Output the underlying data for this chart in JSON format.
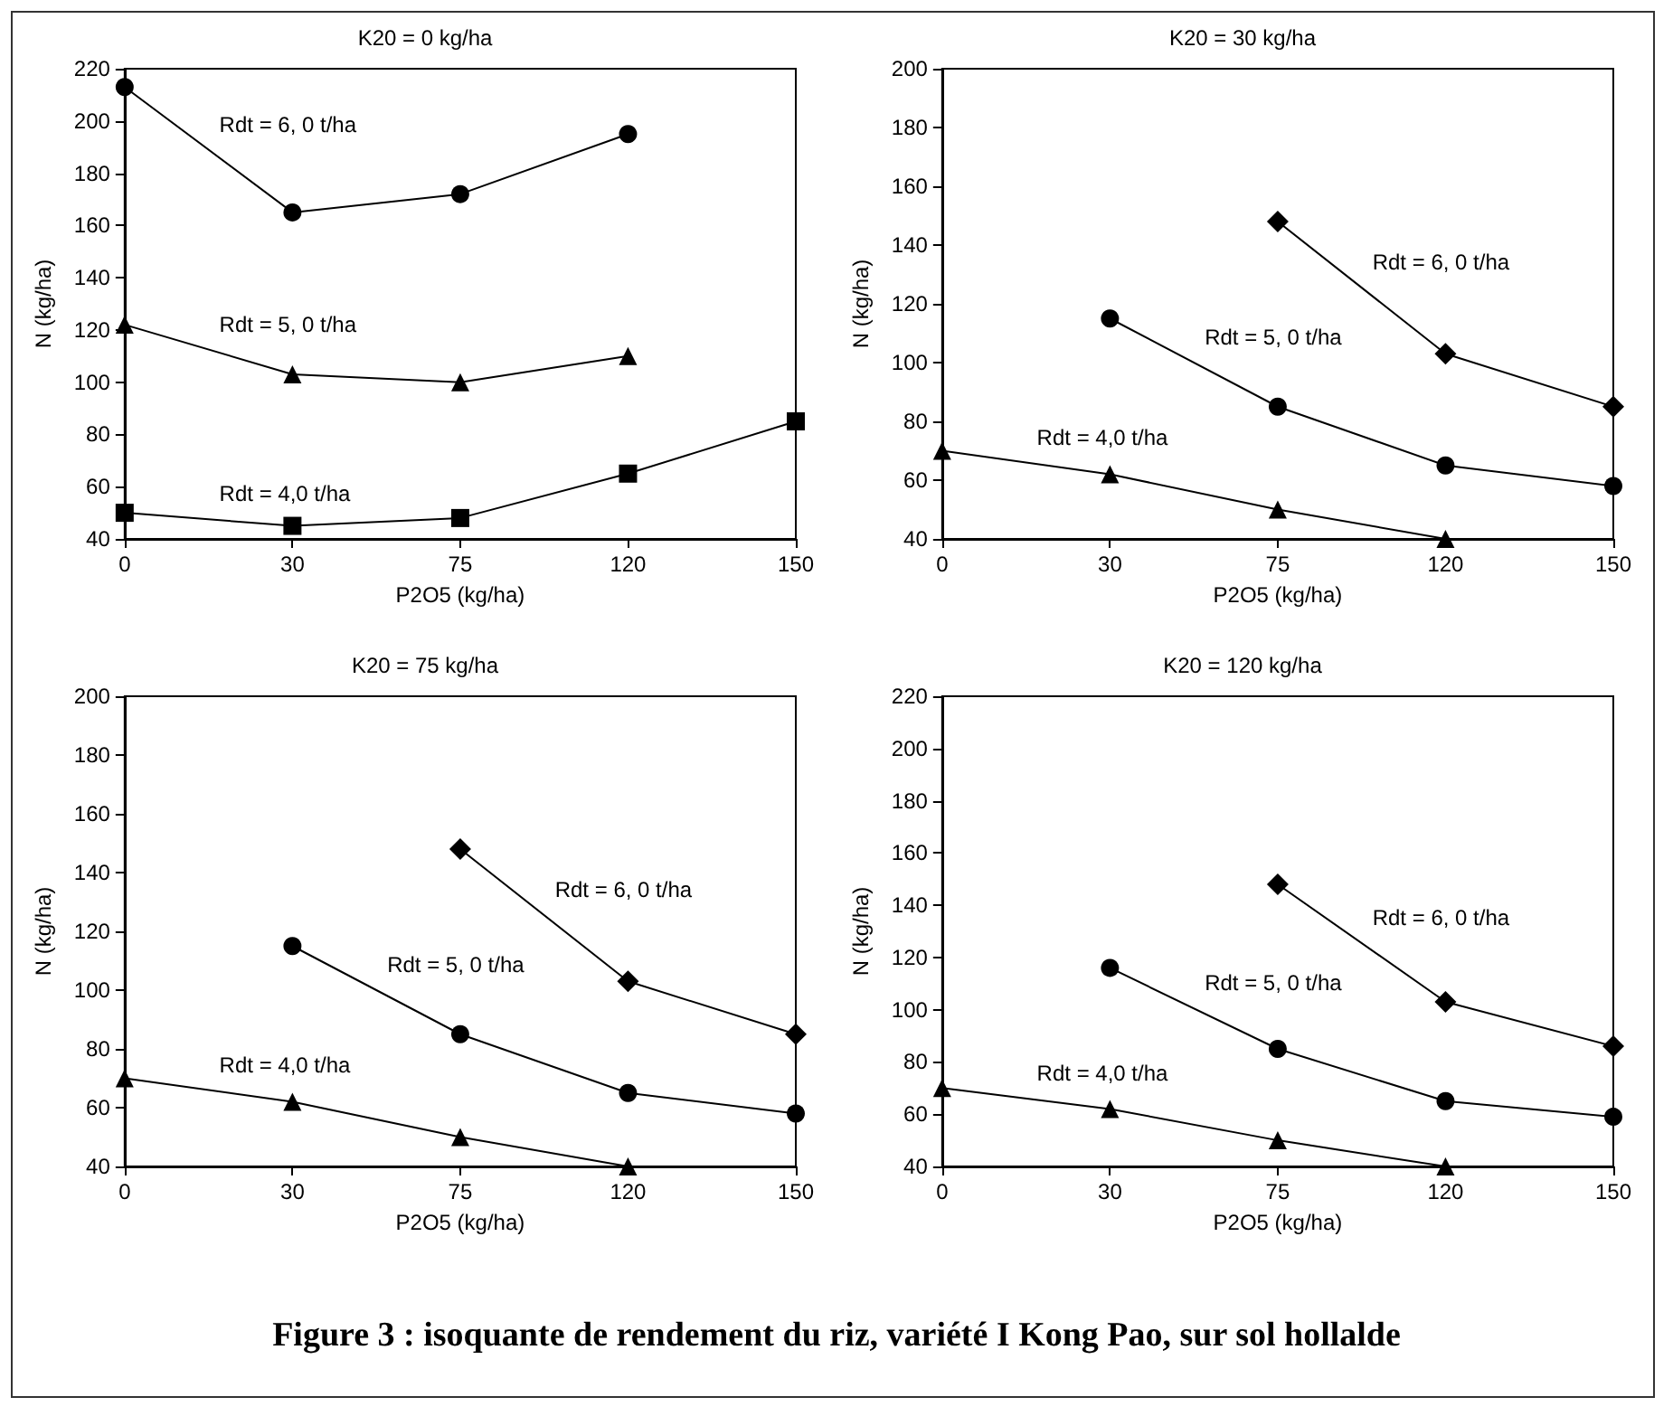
{
  "chart_data": [
    {
      "type": "line",
      "title": "K20 = 0 kg/ha",
      "xlabel": "P2O5 (kg/ha)",
      "ylabel": "N (kg/ha)",
      "categories": [
        "0",
        "30",
        "75",
        "120",
        "150"
      ],
      "ylim": [
        40,
        220
      ],
      "yticks": [
        40,
        60,
        80,
        100,
        120,
        140,
        160,
        180,
        200,
        220
      ],
      "grid": false,
      "series": [
        {
          "name": "Rdt = 6, 0 t/ha",
          "color": "#000000",
          "marker": "circle",
          "values": [
            213,
            165,
            172,
            195,
            null
          ]
        },
        {
          "name": "Rdt = 5, 0 t/ha",
          "color": "#000000",
          "marker": "triangle",
          "values": [
            122,
            103,
            100,
            110,
            null
          ]
        },
        {
          "name": "Rdt = 4,0 t/ha",
          "color": "#000000",
          "marker": "square",
          "values": [
            50,
            45,
            48,
            65,
            85
          ]
        }
      ]
    },
    {
      "type": "line",
      "title": "K20 = 30 kg/ha",
      "xlabel": "P2O5 (kg/ha)",
      "ylabel": "N (kg/ha)",
      "categories": [
        "0",
        "30",
        "75",
        "120",
        "150"
      ],
      "ylim": [
        40,
        200
      ],
      "yticks": [
        40,
        60,
        80,
        100,
        120,
        140,
        160,
        180,
        200
      ],
      "grid": false,
      "series": [
        {
          "name": "Rdt = 6, 0 t/ha",
          "color": "#000000",
          "marker": "diamond",
          "values": [
            null,
            null,
            148,
            103,
            85
          ]
        },
        {
          "name": "Rdt = 5, 0 t/ha",
          "color": "#000000",
          "marker": "circle",
          "values": [
            null,
            115,
            85,
            65,
            58
          ]
        },
        {
          "name": "Rdt = 4,0 t/ha",
          "color": "#000000",
          "marker": "triangle",
          "values": [
            70,
            62,
            50,
            40,
            null
          ]
        }
      ]
    },
    {
      "type": "line",
      "title": "K20 = 75 kg/ha",
      "xlabel": "P2O5 (kg/ha)",
      "ylabel": "N (kg/ha)",
      "categories": [
        "0",
        "30",
        "75",
        "120",
        "150"
      ],
      "ylim": [
        40,
        200
      ],
      "yticks": [
        40,
        60,
        80,
        100,
        120,
        140,
        160,
        180,
        200
      ],
      "grid": false,
      "series": [
        {
          "name": "Rdt = 6, 0 t/ha",
          "color": "#000000",
          "marker": "diamond",
          "values": [
            null,
            null,
            148,
            103,
            85
          ]
        },
        {
          "name": "Rdt = 5, 0 t/ha",
          "color": "#000000",
          "marker": "circle",
          "values": [
            null,
            115,
            85,
            65,
            58
          ]
        },
        {
          "name": "Rdt = 4,0 t/ha",
          "color": "#000000",
          "marker": "triangle",
          "values": [
            70,
            62,
            50,
            40,
            null
          ]
        }
      ]
    },
    {
      "type": "line",
      "title": "K20 = 120 kg/ha",
      "xlabel": "P2O5 (kg/ha)",
      "ylabel": "N (kg/ha)",
      "categories": [
        "0",
        "30",
        "75",
        "120",
        "150"
      ],
      "ylim": [
        40,
        220
      ],
      "yticks": [
        40,
        60,
        80,
        100,
        120,
        140,
        160,
        180,
        200,
        220
      ],
      "grid": false,
      "series": [
        {
          "name": "Rdt = 6, 0 t/ha",
          "color": "#000000",
          "marker": "diamond",
          "values": [
            null,
            null,
            148,
            103,
            86
          ]
        },
        {
          "name": "Rdt = 5, 0 t/ha",
          "color": "#000000",
          "marker": "circle",
          "values": [
            null,
            116,
            85,
            65,
            59
          ]
        },
        {
          "name": "Rdt = 4,0 t/ha",
          "color": "#000000",
          "marker": "triangle",
          "values": [
            70,
            62,
            50,
            40,
            null
          ]
        }
      ],
      "annotations": [
        "Figure  3 : isoquante de rendement du riz, variété I Kong Pao, sur sol hollalde"
      ]
    }
  ]
}
